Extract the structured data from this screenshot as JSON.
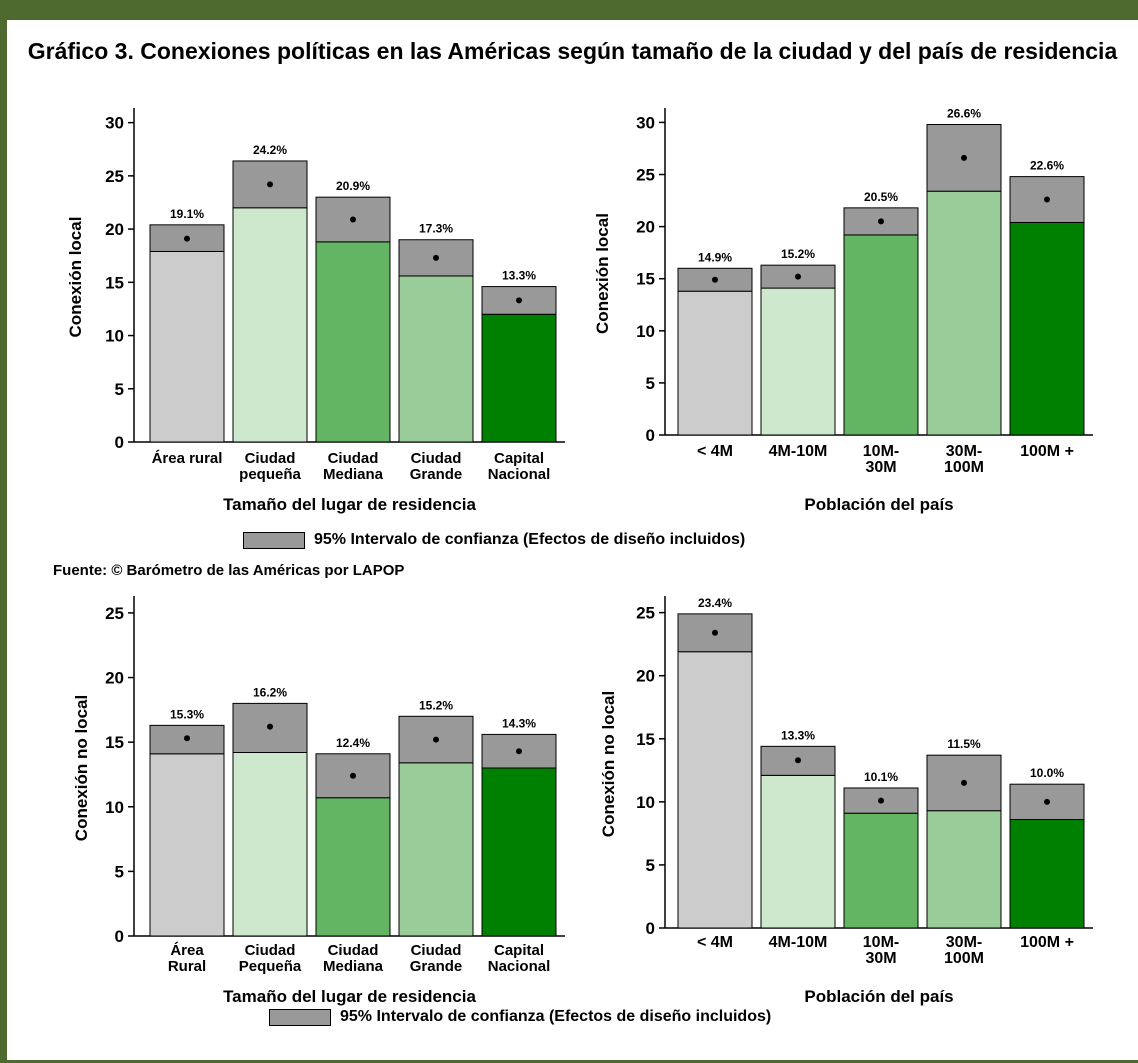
{
  "title": "Gráfico 3. Conexiones políticas en las Américas según tamaño de la ciudad y del país de residencia",
  "source": "Fuente: © Barómetro de las Américas por LAPOP",
  "legend_label": "95% Intervalo de confianza (Efectos de diseño incluidos)",
  "colors": {
    "ci": "#999999",
    "bars": [
      "#cccccc",
      "#cde8cd",
      "#63b563",
      "#99cc99",
      "#008000"
    ]
  },
  "chart_data": [
    {
      "type": "bar",
      "categories": [
        [
          "Área rural"
        ],
        [
          "Ciudad",
          "pequeña"
        ],
        [
          "Ciudad",
          "Mediana"
        ],
        [
          "Ciudad",
          "Grande"
        ],
        [
          "Capital",
          "Nacional"
        ]
      ],
      "values": [
        19.1,
        24.2,
        20.9,
        17.3,
        13.3
      ],
      "ci_low": [
        17.9,
        22.0,
        18.8,
        15.6,
        12.0
      ],
      "ci_high": [
        20.4,
        26.4,
        23.0,
        19.0,
        14.6
      ],
      "value_labels": [
        "19.1%",
        "24.2%",
        "20.9%",
        "17.3%",
        "13.3%"
      ],
      "xlabel": "Tamaño del lugar de residencia",
      "ylabel": "Conexión local",
      "ylim": [
        0,
        31
      ],
      "yticks": [
        0,
        5,
        10,
        15,
        20,
        25,
        30
      ]
    },
    {
      "type": "bar",
      "categories": [
        [
          "< 4M"
        ],
        [
          "4M-10M"
        ],
        [
          "10M-",
          "30M"
        ],
        [
          "30M-",
          "100M"
        ],
        [
          "100M +"
        ]
      ],
      "values": [
        14.9,
        15.2,
        20.5,
        26.6,
        22.6
      ],
      "ci_low": [
        13.8,
        14.1,
        19.2,
        23.4,
        20.4
      ],
      "ci_high": [
        16.0,
        16.3,
        21.8,
        29.8,
        24.8
      ],
      "value_labels": [
        "14.9%",
        "15.2%",
        "20.5%",
        "26.6%",
        "22.6%"
      ],
      "xlabel": "Población del país",
      "ylabel": "Conexión local",
      "ylim": [
        0,
        31
      ],
      "yticks": [
        0,
        5,
        10,
        15,
        20,
        25,
        30
      ]
    },
    {
      "type": "bar",
      "categories": [
        [
          "Área",
          "Rural"
        ],
        [
          "Ciudad",
          "Pequeña"
        ],
        [
          "Ciudad",
          "Mediana"
        ],
        [
          "Ciudad",
          "Grande"
        ],
        [
          "Capital",
          "Nacional"
        ]
      ],
      "values": [
        15.3,
        16.2,
        12.4,
        15.2,
        14.3
      ],
      "ci_low": [
        14.1,
        14.2,
        10.7,
        13.4,
        13.0
      ],
      "ci_high": [
        16.3,
        18.0,
        14.1,
        17.0,
        15.6
      ],
      "value_labels": [
        "15.3%",
        "16.2%",
        "12.4%",
        "15.2%",
        "14.3%"
      ],
      "xlabel": "Tamaño del lugar de residencia",
      "ylabel": "Conexión no local",
      "ylim": [
        0,
        26
      ],
      "yticks": [
        0,
        5,
        10,
        15,
        20,
        25
      ]
    },
    {
      "type": "bar",
      "categories": [
        [
          "< 4M"
        ],
        [
          "4M-10M"
        ],
        [
          "10M-",
          "30M"
        ],
        [
          "30M-",
          "100M"
        ],
        [
          "100M +"
        ]
      ],
      "values": [
        23.4,
        13.3,
        10.1,
        11.5,
        10.0
      ],
      "ci_low": [
        21.9,
        12.1,
        9.1,
        9.3,
        8.6
      ],
      "ci_high": [
        24.9,
        14.4,
        11.1,
        13.7,
        11.4
      ],
      "value_labels": [
        "23.4%",
        "13.3%",
        "10.1%",
        "11.5%",
        "10.0%"
      ],
      "xlabel": "Población del país",
      "ylabel": "Conexión no local",
      "ylim": [
        0,
        26
      ],
      "yticks": [
        0,
        5,
        10,
        15,
        20,
        25
      ]
    }
  ]
}
